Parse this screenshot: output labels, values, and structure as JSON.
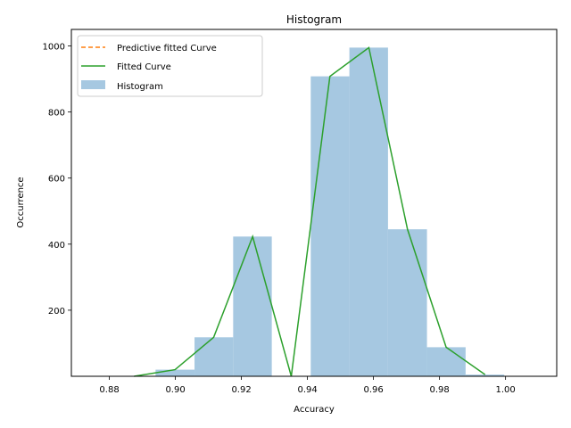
{
  "chart_data": {
    "type": "bar",
    "title": "Histogram",
    "xlabel": "Accuracy",
    "ylabel": "Occurrence",
    "xlim": [
      0.8685,
      1.0155
    ],
    "ylim": [
      0,
      1050
    ],
    "xticks": [
      0.88,
      0.9,
      0.92,
      0.94,
      0.96,
      0.98,
      1.0
    ],
    "xtick_labels": [
      "0.88",
      "0.90",
      "0.92",
      "0.94",
      "0.96",
      "0.98",
      "1.00"
    ],
    "yticks": [
      200,
      400,
      600,
      800,
      1000
    ],
    "ytick_labels": [
      "200",
      "400",
      "600",
      "800",
      "1000"
    ],
    "histogram": {
      "name": "Histogram",
      "color": "#a6c8e1",
      "bins": [
        {
          "x0": 0.894,
          "x1": 0.9058,
          "count": 20
        },
        {
          "x0": 0.9058,
          "x1": 0.9175,
          "count": 118
        },
        {
          "x0": 0.9175,
          "x1": 0.9292,
          "count": 423
        },
        {
          "x0": 0.9292,
          "x1": 0.941,
          "count": 0
        },
        {
          "x0": 0.941,
          "x1": 0.9527,
          "count": 908
        },
        {
          "x0": 0.9527,
          "x1": 0.9644,
          "count": 995
        },
        {
          "x0": 0.9644,
          "x1": 0.9762,
          "count": 445
        },
        {
          "x0": 0.9762,
          "x1": 0.9879,
          "count": 88
        },
        {
          "x0": 0.9879,
          "x1": 0.9996,
          "count": 5
        }
      ]
    },
    "series": [
      {
        "name": "Predictive fitted Curve",
        "color": "#ff7f0e",
        "style": "dashed",
        "x": [],
        "y": []
      },
      {
        "name": "Fitted Curve",
        "color": "#2ca02c",
        "style": "solid",
        "x": [
          0.8875,
          0.8999,
          0.9116,
          0.9234,
          0.9351,
          0.9468,
          0.9586,
          0.9703,
          0.982,
          0.9938
        ],
        "y": [
          0,
          20,
          118,
          423,
          0,
          908,
          995,
          445,
          88,
          5
        ]
      }
    ],
    "legend": {
      "placement": "top-left",
      "entries": [
        {
          "label": "Predictive fitted Curve",
          "kind": "dashed-line",
          "color": "#ff7f0e"
        },
        {
          "label": "Fitted Curve",
          "kind": "line",
          "color": "#2ca02c"
        },
        {
          "label": "Histogram",
          "kind": "patch",
          "color": "#a6c8e1"
        }
      ]
    },
    "grid": false
  }
}
